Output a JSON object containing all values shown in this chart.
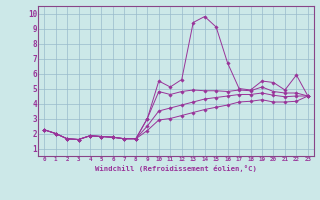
{
  "xlabel": "Windchill (Refroidissement éolien,°C)",
  "bg_color": "#cce8e8",
  "grid_color": "#99bbcc",
  "line_color": "#993399",
  "spine_color": "#884488",
  "xlim": [
    -0.5,
    23.5
  ],
  "ylim": [
    0.5,
    10.5
  ],
  "xticks": [
    0,
    1,
    2,
    3,
    4,
    5,
    6,
    7,
    8,
    9,
    10,
    11,
    12,
    13,
    14,
    15,
    16,
    17,
    18,
    19,
    20,
    21,
    22,
    23
  ],
  "yticks": [
    1,
    2,
    3,
    4,
    5,
    6,
    7,
    8,
    9,
    10
  ],
  "series": [
    [
      2.25,
      2.0,
      1.65,
      1.6,
      1.85,
      1.8,
      1.75,
      1.65,
      1.65,
      3.0,
      5.5,
      5.1,
      5.6,
      9.4,
      9.8,
      9.1,
      6.7,
      5.0,
      4.9,
      5.5,
      5.4,
      4.9,
      5.9,
      4.5
    ],
    [
      2.25,
      2.0,
      1.65,
      1.6,
      1.85,
      1.8,
      1.75,
      1.65,
      1.65,
      3.0,
      4.8,
      4.6,
      4.8,
      4.9,
      4.85,
      4.85,
      4.8,
      4.9,
      4.85,
      5.1,
      4.8,
      4.7,
      4.7,
      4.5
    ],
    [
      2.25,
      2.0,
      1.65,
      1.6,
      1.85,
      1.8,
      1.75,
      1.65,
      1.65,
      2.5,
      3.5,
      3.7,
      3.9,
      4.1,
      4.3,
      4.4,
      4.5,
      4.6,
      4.6,
      4.7,
      4.55,
      4.45,
      4.5,
      4.5
    ],
    [
      2.25,
      2.0,
      1.65,
      1.6,
      1.85,
      1.8,
      1.75,
      1.65,
      1.65,
      2.2,
      2.9,
      3.0,
      3.2,
      3.4,
      3.6,
      3.75,
      3.9,
      4.1,
      4.15,
      4.25,
      4.1,
      4.1,
      4.15,
      4.5
    ]
  ]
}
